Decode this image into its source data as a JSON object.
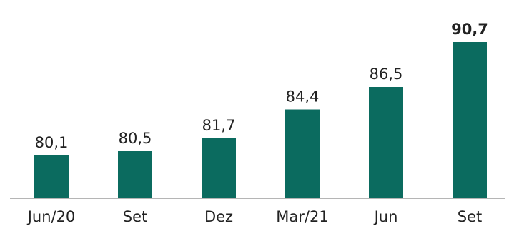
{
  "chart_data": {
    "type": "bar",
    "categories": [
      "Jun/20",
      "Set",
      "Dez",
      "Mar/21",
      "Jun",
      "Set"
    ],
    "values": [
      80.1,
      80.5,
      81.7,
      84.4,
      86.5,
      90.7
    ],
    "value_labels": [
      "80,1",
      "80,5",
      "81,7",
      "84,4",
      "86,5",
      "90,7"
    ],
    "highlight_index": 5,
    "ylim": [
      76.1,
      91.3
    ],
    "grid": false,
    "legend": "none",
    "colors": {
      "bar": "#0b6b5f",
      "axis": "#b5b5b5",
      "text": "#222222"
    }
  }
}
